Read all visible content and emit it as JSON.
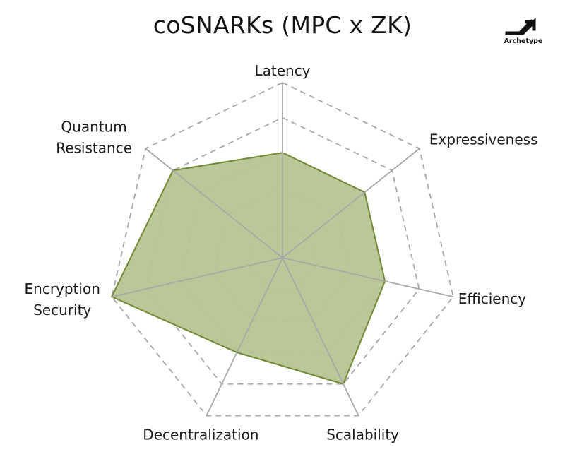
{
  "title": "coSNARKs (MPC x ZK)",
  "logo": {
    "text": "Archetype",
    "icon": "archetype-arrow-logo"
  },
  "colors": {
    "fill": "#b6c493",
    "stroke": "#6f8a33",
    "spoke": "#a8a8a8",
    "grid": "#a8a8a8"
  },
  "chart_data": {
    "type": "radar",
    "title": "coSNARKs (MPC x ZK)",
    "axes": [
      {
        "name": "Latency",
        "lines": [
          "Latency"
        ],
        "value": 3
      },
      {
        "name": "Expressiveness",
        "lines": [
          "Expressiveness"
        ],
        "value": 3
      },
      {
        "name": "Efficiency",
        "lines": [
          "Efficiency"
        ],
        "value": 3
      },
      {
        "name": "Scalability",
        "lines": [
          "Scalability"
        ],
        "value": 4
      },
      {
        "name": "Decentralization",
        "lines": [
          "Decentralization"
        ],
        "value": 3
      },
      {
        "name": "Encryption Security",
        "lines": [
          "Encryption",
          "Security"
        ],
        "value": 5
      },
      {
        "name": "Quantum Resistance",
        "lines": [
          "Quantum",
          "Resistance"
        ],
        "value": 4
      }
    ],
    "range": [
      0,
      5
    ],
    "grid_levels": 5,
    "grid": true,
    "legend": false
  }
}
